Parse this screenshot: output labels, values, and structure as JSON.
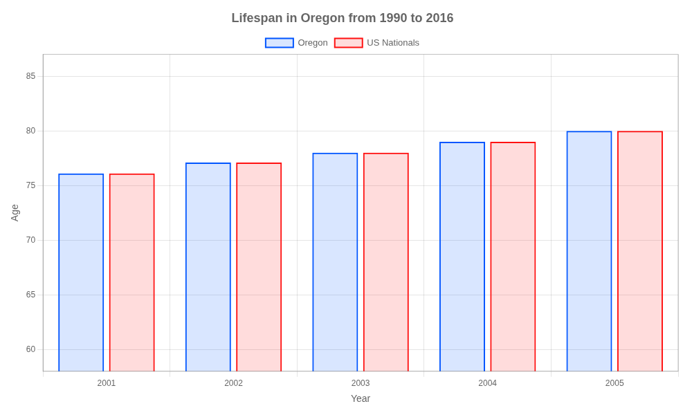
{
  "chart_data": {
    "type": "bar",
    "title": "Lifespan in Oregon from 1990 to 2016",
    "x_label": "Year",
    "y_label": "Age",
    "categories": [
      "2001",
      "2002",
      "2003",
      "2004",
      "2005"
    ],
    "series": [
      {
        "name": "Oregon",
        "color": "#0055ff",
        "values": [
          76.1,
          77.1,
          78.0,
          79.0,
          80.0
        ]
      },
      {
        "name": "US Nationals",
        "color": "#ff1111",
        "values": [
          76.1,
          77.1,
          78.0,
          79.0,
          80.0
        ]
      }
    ],
    "ylim": [
      58,
      87
    ],
    "yticks": [
      60,
      65,
      70,
      75,
      80,
      85
    ],
    "grid": true,
    "legend": "top"
  }
}
